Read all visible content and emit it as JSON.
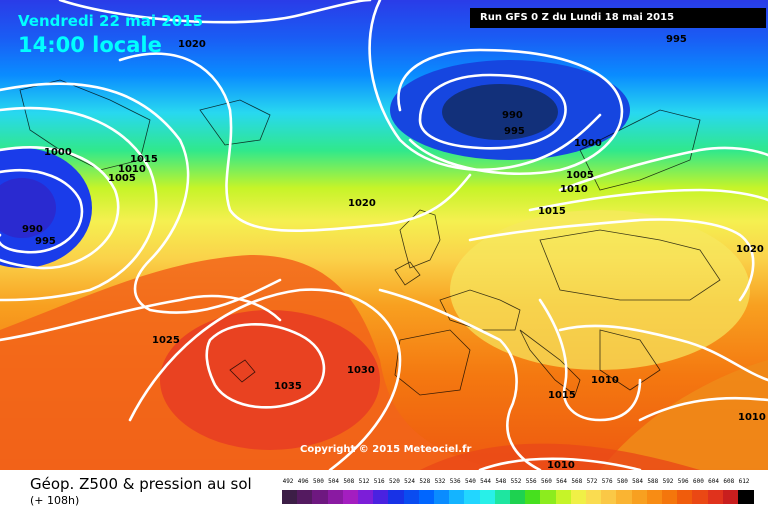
{
  "header": {
    "date": "Vendredi 22 mai 2015",
    "time": "14:00 locale",
    "run": "Run GFS 0 Z du Lundi 18 mai 2015"
  },
  "copyright": "Copyright © 2015 Meteociel.fr",
  "footer": {
    "title": "Géop. Z500 & pression au sol",
    "subtitle": "(+ 108h)"
  },
  "legend": {
    "ticks": [
      "492",
      "496",
      "500",
      "504",
      "508",
      "512",
      "516",
      "520",
      "524",
      "528",
      "532",
      "536",
      "540",
      "544",
      "548",
      "552",
      "556",
      "560",
      "564",
      "568",
      "572",
      "576",
      "580",
      "584",
      "588",
      "592",
      "596",
      "600",
      "604",
      "608",
      "612"
    ],
    "colors": [
      "#3c1e46",
      "#541a60",
      "#6e1880",
      "#8a1aa2",
      "#a41ec0",
      "#7c1ed8",
      "#4a22e0",
      "#1832e6",
      "#0a4cf0",
      "#0066ff",
      "#0a8cff",
      "#14b4ff",
      "#22d6ff",
      "#28f0e8",
      "#1ee6a0",
      "#1ed250",
      "#46e01e",
      "#8cec1e",
      "#c6f428",
      "#f0f046",
      "#fadc50",
      "#fac846",
      "#fab432",
      "#f8a020",
      "#f88c14",
      "#f4760c",
      "#f05c0c",
      "#ea4814",
      "#e0321c",
      "#c81e1e",
      "#000000"
    ]
  },
  "pressure_labels": [
    "1020",
    "1000",
    "1015",
    "1010",
    "1005",
    "990",
    "995",
    "1020",
    "990",
    "995",
    "1000",
    "1005",
    "1010",
    "1015",
    "1020",
    "1025",
    "1035",
    "1030",
    "1010",
    "1015",
    "1010",
    "1010",
    "995"
  ]
}
